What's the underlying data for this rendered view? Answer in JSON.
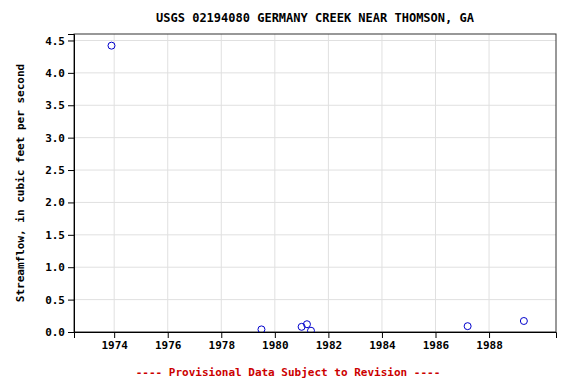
{
  "chart_data": {
    "type": "scatter",
    "title": "USGS 02194080 GERMANY CREEK NEAR THOMSON, GA",
    "ylabel": "Streamflow, in cubic feet per second",
    "annotations": [
      {
        "text": "---- Provisional Data Subject to Revision ----",
        "color": "#cc0000"
      }
    ],
    "x": [
      1973.9,
      1979.5,
      1981.0,
      1981.2,
      1981.35,
      1987.2,
      1989.3
    ],
    "values": [
      4.42,
      0.04,
      0.08,
      0.12,
      0.02,
      0.09,
      0.17
    ],
    "color": "#0000CC",
    "marker": "open-circle",
    "xlim": [
      1972.5,
      1990.5
    ],
    "ylim": [
      0.0,
      4.6
    ],
    "xticks": [
      1974,
      1976,
      1978,
      1980,
      1982,
      1984,
      1986,
      1988
    ],
    "yticks": [
      {
        "value": 0.0,
        "label": "0.0"
      },
      0.5,
      {
        "value": 1.0,
        "label": "1.0"
      },
      1.5,
      {
        "value": 2.0,
        "label": "2.0"
      },
      2.5,
      {
        "value": 3.0,
        "label": "3.0"
      },
      3.5,
      {
        "value": 4.0,
        "label": "4.0"
      },
      4.5
    ],
    "grid": true
  }
}
